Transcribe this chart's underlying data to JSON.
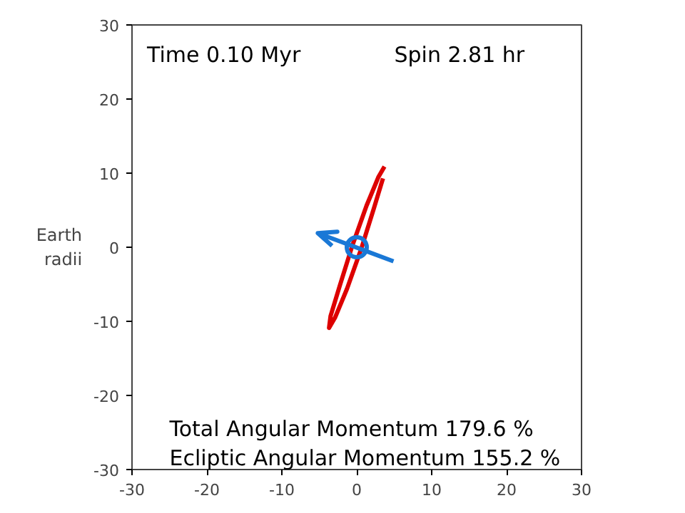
{
  "chart_data": {
    "type": "line",
    "ylabel": "Earth\nradii",
    "xlim": [
      -30,
      30
    ],
    "ylim": [
      -30,
      30
    ],
    "xticks": [
      -30,
      -20,
      -10,
      0,
      10,
      20,
      30
    ],
    "yticks": [
      -30,
      -20,
      -10,
      0,
      10,
      20,
      30
    ],
    "grid": false,
    "annotations": [
      "Time  0.10 Myr",
      "Spin 2.81 hr",
      "Total Angular Momentum 179.6 %",
      "Ecliptic Angular Momentum 155.2 %"
    ],
    "series": [
      {
        "color": "#dd0000",
        "x": [
          3.7,
          2.9,
          1.3,
          -0.6,
          -2.3,
          -3.5,
          -3.7,
          -2.9,
          -1.3,
          0.6,
          2.3,
          3.5
        ],
        "values": [
          10.9,
          9.5,
          5.6,
          0.2,
          -5.3,
          -9.3,
          -10.9,
          -9.5,
          -5.6,
          -0.2,
          5.3,
          9.3
        ]
      },
      {
        "type": "line",
        "color": "#1a78d6",
        "x": [
          4.9,
          -5.2,
          -2.6,
          -5.2,
          -3.3
        ],
        "values": [
          -1.9,
          1.9,
          2.1,
          1.9,
          0.2
        ]
      },
      {
        "type": "scatter",
        "color": "#1a78d6",
        "marker": "circle",
        "x": [
          0
        ],
        "values": [
          0
        ]
      }
    ]
  }
}
